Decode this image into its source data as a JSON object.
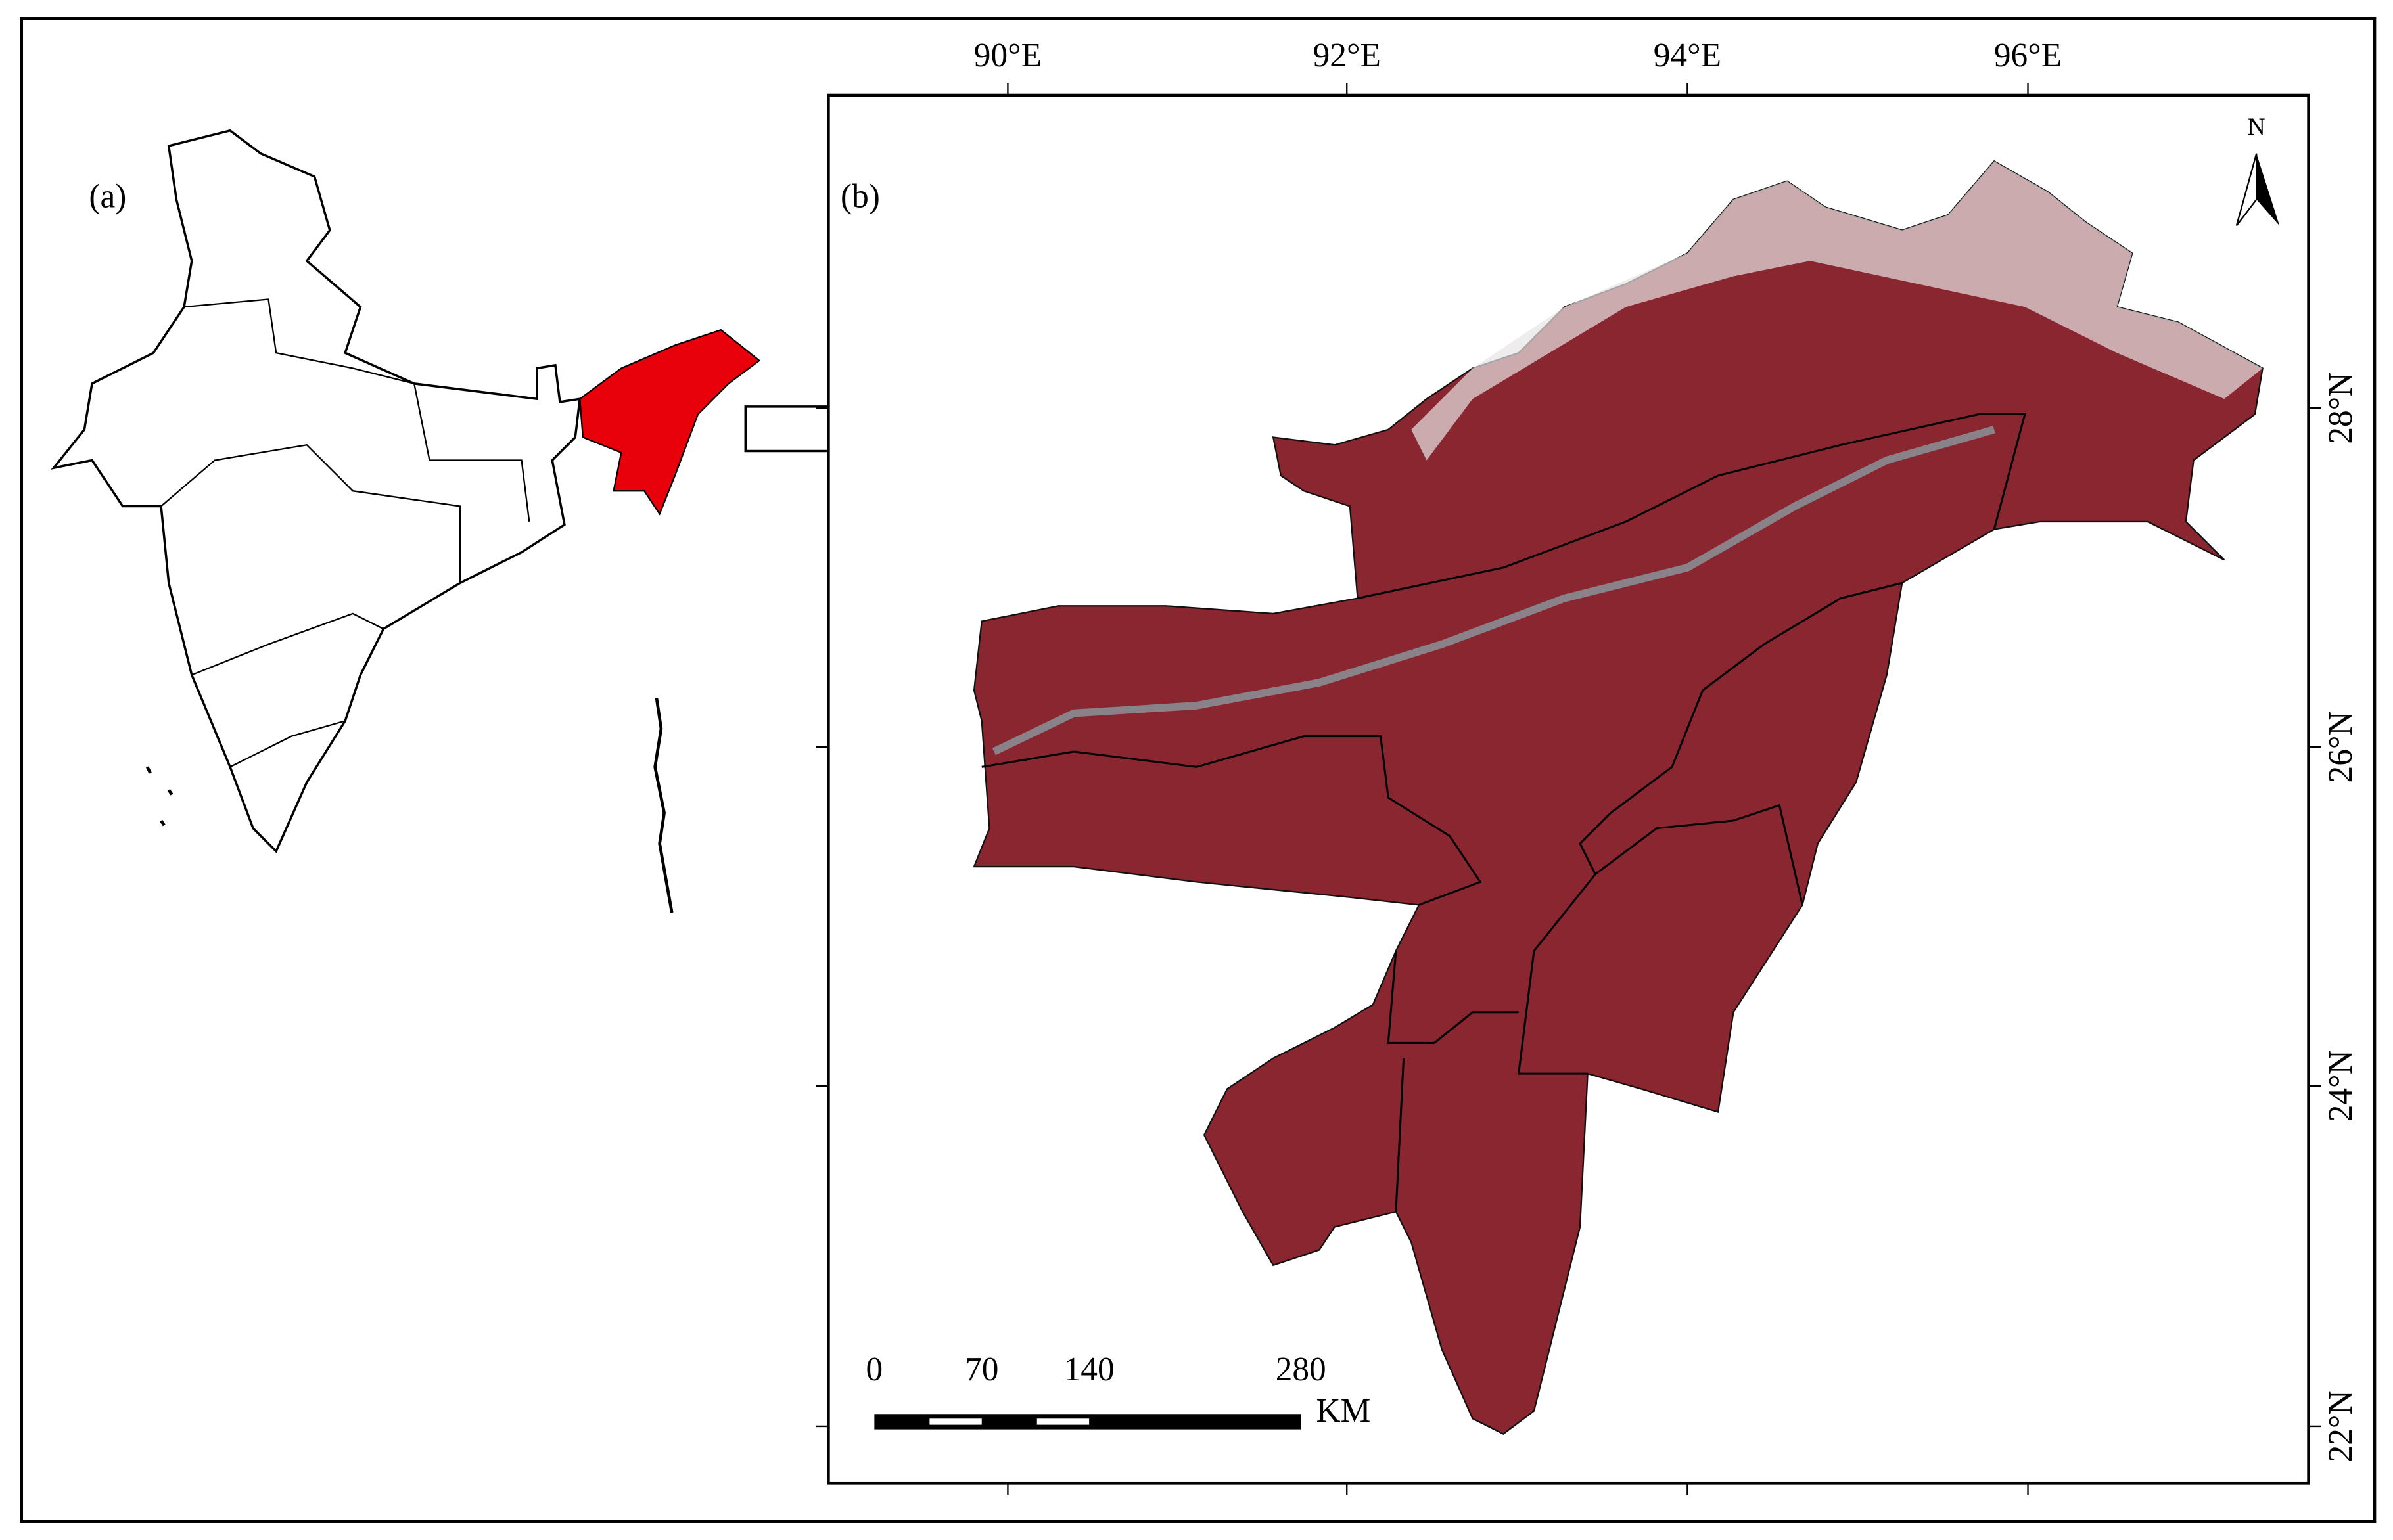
{
  "panels": {
    "a": {
      "label": "(a)"
    },
    "b": {
      "label": "(b)",
      "longitude_labels": [
        "90°E",
        "92°E",
        "94°E",
        "96°E"
      ],
      "latitude_labels": [
        "22°N",
        "24°N",
        "26°N",
        "28°N"
      ],
      "north_label": "N",
      "scale_bar": {
        "labels": [
          0,
          70,
          140,
          280
        ],
        "unit": "KM"
      }
    }
  }
}
